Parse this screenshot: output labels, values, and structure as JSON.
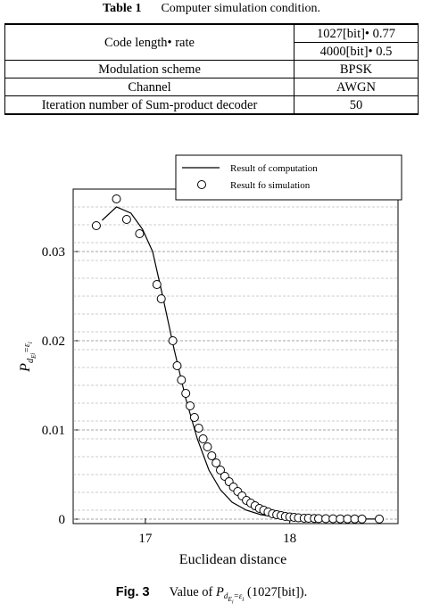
{
  "table": {
    "label": "Table 1",
    "title": "Computer simulation condition.",
    "rows": [
      {
        "param": "Code length• rate",
        "values": [
          "1027[bit]• 0.77",
          "4000[bit]• 0.5"
        ]
      },
      {
        "param": "Modulation scheme",
        "values": [
          "BPSK"
        ]
      },
      {
        "param": "Channel",
        "values": [
          "AWGN"
        ]
      },
      {
        "param": "Iteration number of Sum-product decoder",
        "values": [
          "50"
        ]
      }
    ]
  },
  "figure": {
    "label": "Fig. 3",
    "caption_prefix": "Value of",
    "caption_symbol": "P",
    "caption_subscript": "d_{E_i}=ε_i",
    "caption_suffix": "(1027[bit])."
  },
  "chart_data": {
    "type": "scatter",
    "xlabel": "Euclidean distance",
    "ylabel": "P d_{E_i} = ε_i",
    "xlim": [
      16.5,
      18.75
    ],
    "ylim": [
      -0.0005,
      0.037
    ],
    "xticks": [
      17,
      18
    ],
    "xtick_labels": [
      "17",
      "18"
    ],
    "yticks": [
      0,
      0.01,
      0.02,
      0.03
    ],
    "ytick_labels": [
      "0",
      "0.01",
      "0.02",
      "0.03"
    ],
    "grid": "horizontal dashed",
    "legend_position": "top-right",
    "series": [
      {
        "name": "Result of computation",
        "kind": "line",
        "x": [
          16.7,
          16.8,
          16.9,
          16.98,
          17.05,
          17.12,
          17.2,
          17.28,
          17.36,
          17.44,
          17.52,
          17.6,
          17.7,
          17.8,
          17.9,
          18.0,
          18.15,
          18.35,
          18.6
        ],
        "y": [
          0.0335,
          0.035,
          0.0343,
          0.0325,
          0.03,
          0.025,
          0.019,
          0.0135,
          0.009,
          0.0055,
          0.0033,
          0.0019,
          0.001,
          0.0005,
          0.00025,
          0.00012,
          5e-05,
          2e-05,
          1e-05
        ]
      },
      {
        "name": "Result fo simulation",
        "kind": "markers",
        "x": [
          16.66,
          16.8,
          16.87,
          16.96,
          17.08,
          17.11,
          17.19,
          17.22,
          17.25,
          17.28,
          17.31,
          17.34,
          17.37,
          17.4,
          17.43,
          17.46,
          17.49,
          17.52,
          17.55,
          17.58,
          17.61,
          17.64,
          17.67,
          17.7,
          17.73,
          17.76,
          17.79,
          17.82,
          17.85,
          17.88,
          17.91,
          17.94,
          17.97,
          18.0,
          18.03,
          18.06,
          18.1,
          18.13,
          18.17,
          18.2,
          18.25,
          18.3,
          18.35,
          18.4,
          18.45,
          18.5,
          18.62
        ],
        "y": [
          0.0329,
          0.0359,
          0.0336,
          0.032,
          0.0263,
          0.0247,
          0.02,
          0.0172,
          0.0156,
          0.0141,
          0.0127,
          0.0114,
          0.0102,
          0.009,
          0.0081,
          0.0071,
          0.0063,
          0.0055,
          0.0048,
          0.0042,
          0.0036,
          0.0031,
          0.0026,
          0.0021,
          0.0018,
          0.0015,
          0.0012,
          0.001,
          0.0008,
          0.0006,
          0.0005,
          0.0004,
          0.0003,
          0.00025,
          0.0002,
          0.00015,
          0.0001,
          0.0001,
          8e-05,
          6e-05,
          5e-05,
          4e-05,
          3e-05,
          2e-05,
          2e-05,
          1e-05,
          1e-05
        ]
      }
    ]
  }
}
